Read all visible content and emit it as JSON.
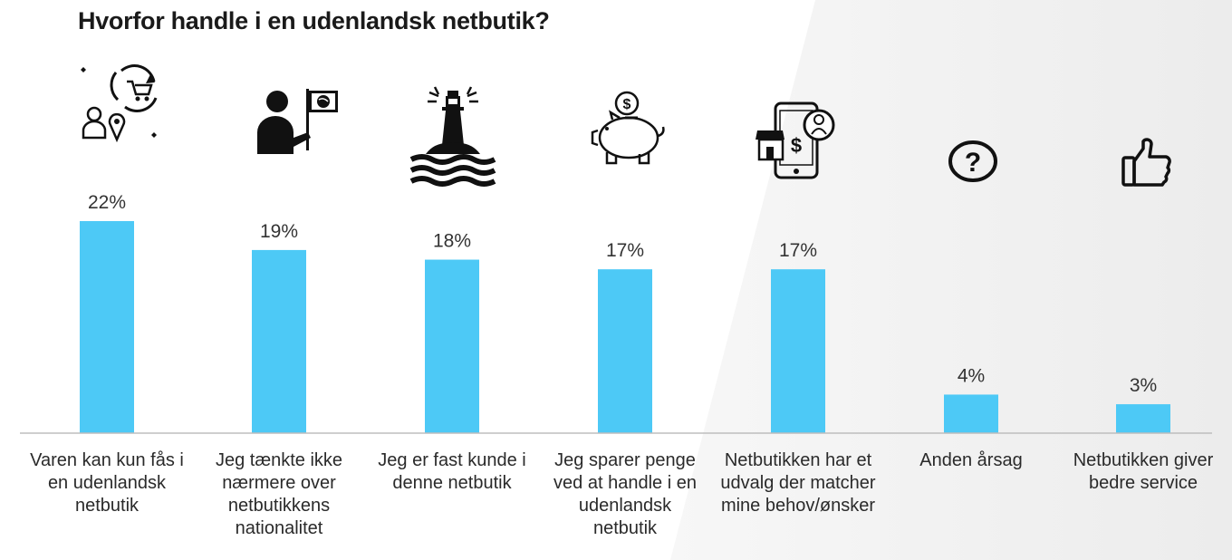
{
  "title": "Hvorfor handle i en udenlandsk netbutik?",
  "colors": {
    "bar": "#4DC9F6",
    "axis": "#bdbdbd",
    "text": "#2a2a2a"
  },
  "icons": [
    "cart-cycle-location-icon",
    "person-flag-globe-icon",
    "lighthouse-waves-icon",
    "piggy-bank-dollar-icon",
    "phone-shop-dollar-icon",
    "question-circle-icon",
    "thumbs-up-icon"
  ],
  "chart_data": {
    "type": "bar",
    "title": "Hvorfor handle i en udenlandsk netbutik?",
    "categories": [
      [
        "Varen kan kun fås i",
        "en udenlandsk",
        "netbutik"
      ],
      [
        "Jeg tænkte ikke",
        "nærmere over",
        "netbutikkens",
        "nationalitet"
      ],
      [
        "Jeg er fast kunde i",
        "denne netbutik"
      ],
      [
        "Jeg sparer penge",
        "ved at handle i en",
        "udenlandsk",
        "netbutik"
      ],
      [
        "Netbutikken har et",
        "udvalg der matcher",
        "mine behov/ønsker"
      ],
      [
        "Anden årsag"
      ],
      [
        "Netbutikken giver",
        "bedre service"
      ]
    ],
    "values": [
      22,
      19,
      18,
      17,
      17,
      4,
      3
    ],
    "value_labels": [
      "22%",
      "19%",
      "18%",
      "17%",
      "17%",
      "4%",
      "3%"
    ],
    "unit": "%",
    "ylim": [
      0,
      22
    ],
    "grid": false,
    "legend": "none"
  }
}
